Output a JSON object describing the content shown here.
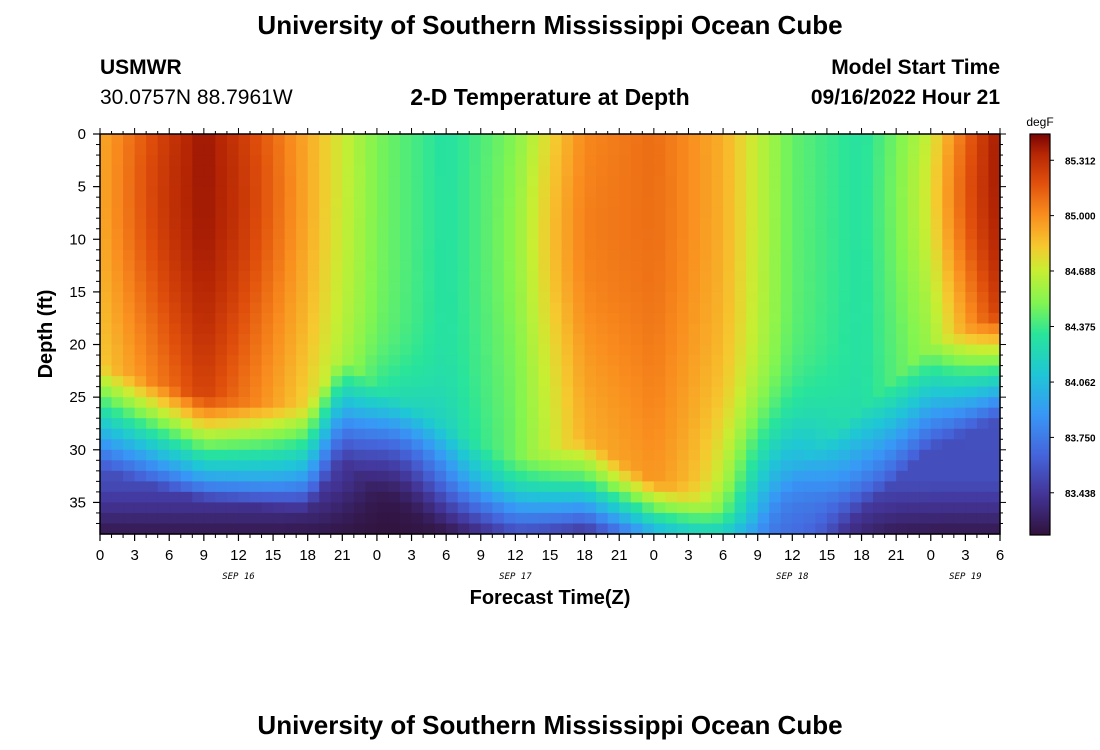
{
  "header": {
    "title": "University of Southern Mississippi Ocean Cube",
    "station": "USMWR",
    "coords": "30.0757N  88.7961W",
    "plot_title": "2-D Temperature at Depth",
    "model_label": "Model Start Time",
    "model_time": "09/16/2022 Hour 21"
  },
  "footer": {
    "title": "University of Southern Mississippi Ocean Cube"
  },
  "chart_data": {
    "type": "heatmap",
    "title": "2-D Temperature at Depth",
    "xlabel": "Forecast Time(Z)",
    "ylabel": "Depth (ft)",
    "x_unit": "forecast hours from SEP 16 00Z",
    "xlim": [
      0,
      78
    ],
    "ylim": [
      0,
      38
    ],
    "x_tick_values": [
      0,
      3,
      6,
      9,
      12,
      15,
      18,
      21,
      24,
      27,
      30,
      33,
      36,
      39,
      42,
      45,
      48,
      51,
      54,
      57,
      60,
      63,
      66,
      69,
      72,
      75,
      78
    ],
    "x_tick_labels": [
      "0",
      "3",
      "6",
      "9",
      "12",
      "15",
      "18",
      "21",
      "0",
      "3",
      "6",
      "9",
      "12",
      "15",
      "18",
      "21",
      "0",
      "3",
      "6",
      "9",
      "12",
      "15",
      "18",
      "21",
      "0",
      "3",
      "6"
    ],
    "y_ticks": [
      0,
      5,
      10,
      15,
      20,
      25,
      30,
      35
    ],
    "date_labels": [
      {
        "text": "SEP 16",
        "hour": 12
      },
      {
        "text": "SEP 17",
        "hour": 36
      },
      {
        "text": "SEP 18",
        "hour": 60
      },
      {
        "text": "SEP 19",
        "hour": 75
      }
    ],
    "colorbar": {
      "unit": "degF",
      "min": 83.2,
      "max": 85.46,
      "ticks": [
        83.438,
        83.75,
        84.062,
        84.375,
        84.688,
        85.0,
        85.312
      ],
      "tick_labels": [
        "83.438",
        "83.750",
        "84.062",
        "84.375",
        "84.688",
        "85.000",
        "85.312"
      ]
    },
    "warm_cores": [
      {
        "hour": 9,
        "depth": 7,
        "max_degF": 85.4
      },
      {
        "hour": 44,
        "depth": 10,
        "max_degF": 85.1
      },
      {
        "hour": 78,
        "depth": 6,
        "max_degF": 85.4
      }
    ],
    "cold_features": [
      {
        "hour": 25,
        "depth": 37,
        "min_degF": 83.2
      },
      {
        "hour": 60,
        "depth": 37,
        "min_degF": 83.7
      }
    ],
    "surface_profile_degF": [
      {
        "hour": 0,
        "value": 84.9
      },
      {
        "hour": 9,
        "value": 85.4
      },
      {
        "hour": 18,
        "value": 84.9
      },
      {
        "hour": 24,
        "value": 84.5
      },
      {
        "hour": 30,
        "value": 84.3
      },
      {
        "hour": 36,
        "value": 84.5
      },
      {
        "hour": 42,
        "value": 85.0
      },
      {
        "hour": 48,
        "value": 85.1
      },
      {
        "hour": 54,
        "value": 84.9
      },
      {
        "hour": 60,
        "value": 84.45
      },
      {
        "hour": 66,
        "value": 84.3
      },
      {
        "hour": 72,
        "value": 84.6
      },
      {
        "hour": 78,
        "value": 85.4
      }
    ]
  }
}
